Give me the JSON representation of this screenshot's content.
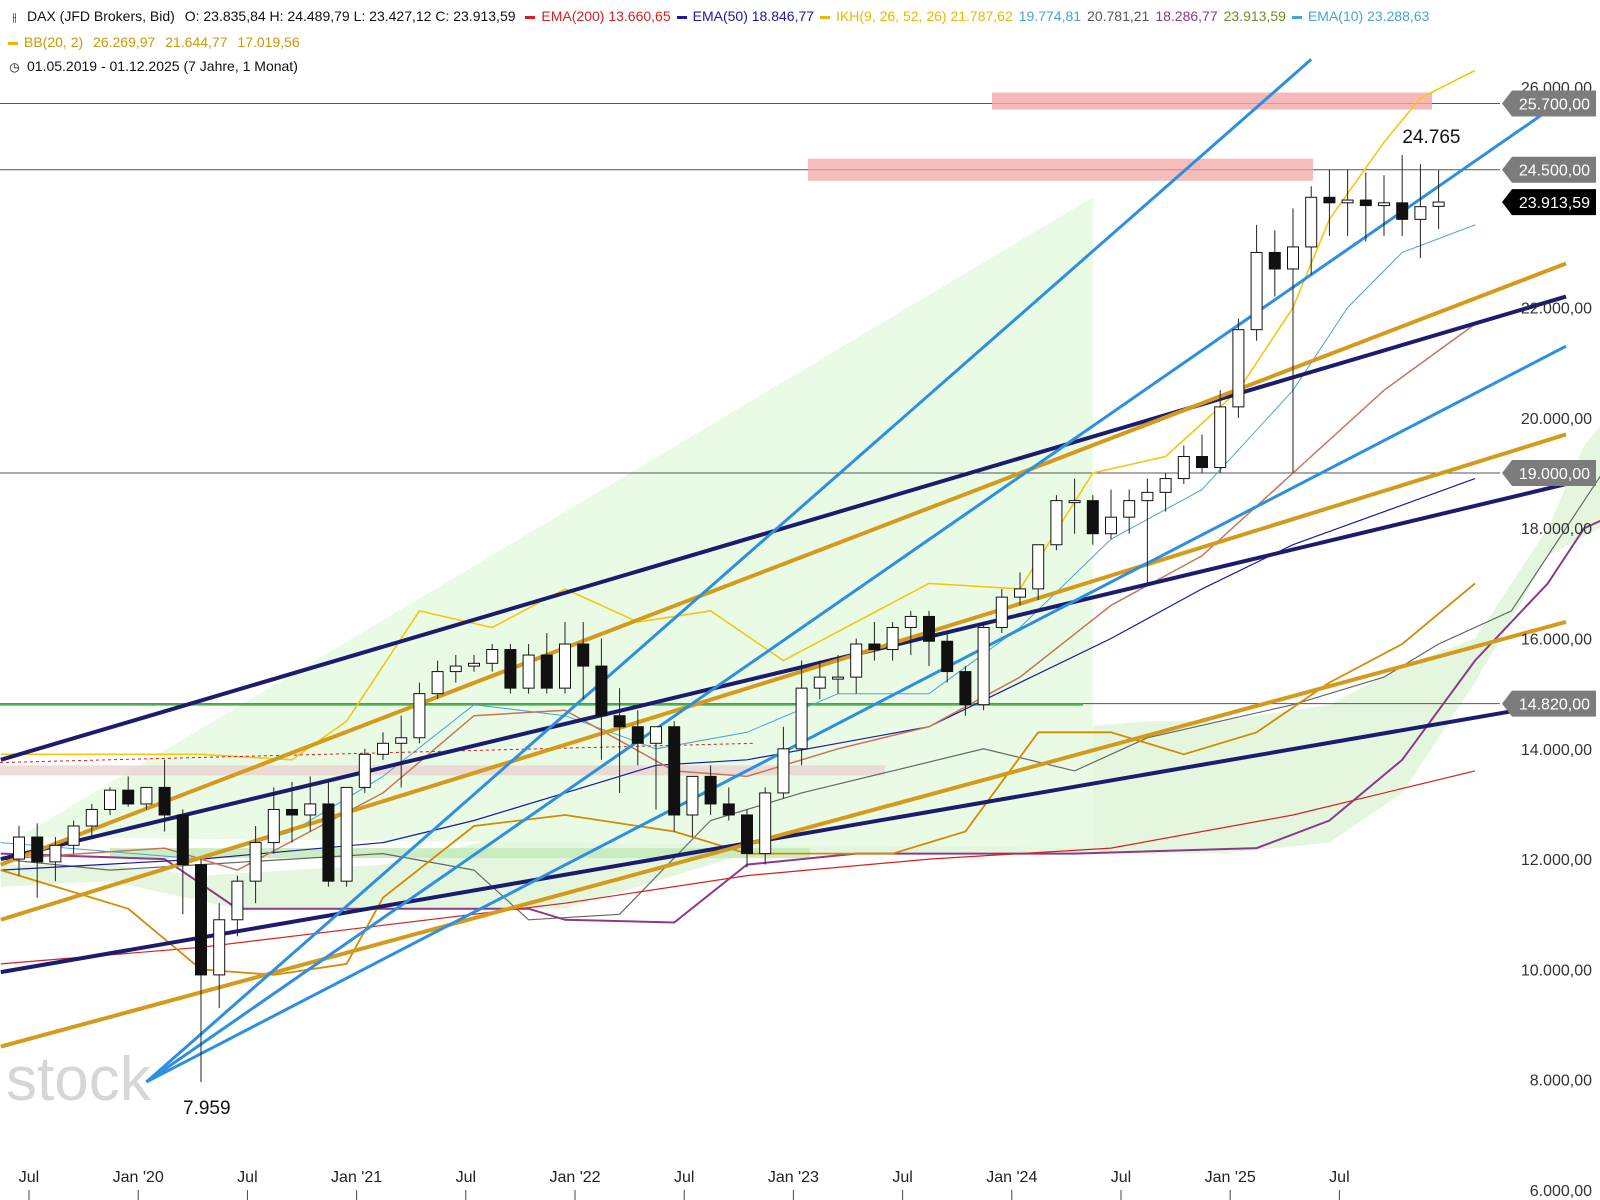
{
  "header": {
    "instrument": "DAX (JFD Brokers, Bid)",
    "ohlc": "O: 23.835,84  H: 24.489,79  L: 23.427,12  C: 23.913,59",
    "indicators": [
      {
        "label": "EMA(200)",
        "values": "13.660,65",
        "color": "#d62020"
      },
      {
        "label": "EMA(50)",
        "values": "18.846,77",
        "color": "#1a1aa0"
      },
      {
        "label": "IKH(9, 26, 52, 26)",
        "values": "21.787,62",
        "color": "#e6b800"
      },
      {
        "label": "",
        "values": "19.774,81",
        "color": "#4aa3d8"
      },
      {
        "label": "",
        "values": "20.781,21",
        "color": "#555555"
      },
      {
        "label": "",
        "values": "18.286,77",
        "color": "#8a3a8a"
      },
      {
        "label": "",
        "values": "23.913,59",
        "color": "#6b8e23"
      },
      {
        "label": "EMA(10)",
        "values": "23.288,63",
        "color": "#4aa3d8"
      }
    ],
    "bb": {
      "label": "BB(20, 2)",
      "upper": "26.269,97",
      "middle": "21.644,77",
      "lower": "17.019,56",
      "color": "#e6b800"
    },
    "range": "01.05.2019 - 01.12.2025  (7 Jahre, 1 Monat)"
  },
  "chart_data": {
    "type": "candlestick",
    "y_ticks": [
      "6.000,00",
      "8.000,00",
      "10.000,00",
      "12.000,00",
      "14.000,00",
      "16.000,00",
      "18.000,00",
      "20.000,00",
      "22.000,00",
      "24.000,00",
      "26.000,00"
    ],
    "x_ticks": [
      "Jul",
      "Jan '20",
      "Jul",
      "Jan '21",
      "Jul",
      "Jan '22",
      "Jul",
      "Jan '23",
      "Jul",
      "Jan '24",
      "Jul",
      "Jan '25",
      "Jul"
    ],
    "price_labels": [
      {
        "value": 25700,
        "text": "25.700,00",
        "style": "grey"
      },
      {
        "value": 24500,
        "text": "24.500,00",
        "style": "grey"
      },
      {
        "value": 23913.59,
        "text": "23.913,59",
        "style": "black"
      },
      {
        "value": 19000,
        "text": "19.000,00",
        "style": "grey"
      },
      {
        "value": 14820,
        "text": "14.820,00",
        "style": "grey"
      }
    ],
    "annotations": [
      {
        "text": "24.765",
        "x_month": 77,
        "value": 24765
      },
      {
        "text": "7.959",
        "x_month": 10,
        "value": 7959
      }
    ],
    "candles": [
      [
        12000,
        12600,
        11700,
        12400
      ],
      [
        12400,
        12650,
        11300,
        11950
      ],
      [
        11950,
        12400,
        11600,
        12250
      ],
      [
        12250,
        12700,
        12100,
        12600
      ],
      [
        12600,
        13000,
        12400,
        12900
      ],
      [
        12900,
        13300,
        12800,
        13250
      ],
      [
        13250,
        13500,
        12950,
        13000
      ],
      [
        13000,
        13300,
        12900,
        13300
      ],
      [
        13300,
        13800,
        12500,
        12800
      ],
      [
        12800,
        12900,
        11000,
        11900
      ],
      [
        11900,
        12000,
        7959,
        9900
      ],
      [
        9900,
        11200,
        9300,
        10900
      ],
      [
        10900,
        11700,
        10600,
        11600
      ],
      [
        11600,
        12600,
        11200,
        12300
      ],
      [
        12300,
        13300,
        12100,
        12900
      ],
      [
        12900,
        13400,
        12300,
        12800
      ],
      [
        12800,
        13500,
        12500,
        13000
      ],
      [
        13000,
        13400,
        11500,
        11600
      ],
      [
        11600,
        13300,
        11500,
        13300
      ],
      [
        13300,
        14000,
        13200,
        13900
      ],
      [
        13900,
        14300,
        13800,
        14100
      ],
      [
        14100,
        14600,
        13300,
        14200
      ],
      [
        14200,
        15200,
        14100,
        15000
      ],
      [
        15000,
        15600,
        14900,
        15400
      ],
      [
        15400,
        15700,
        15200,
        15500
      ],
      [
        15500,
        15700,
        15400,
        15550
      ],
      [
        15550,
        15900,
        15400,
        15800
      ],
      [
        15800,
        15900,
        15000,
        15100
      ],
      [
        15100,
        15900,
        15000,
        15700
      ],
      [
        15700,
        16100,
        15000,
        15100
      ],
      [
        15100,
        16300,
        15000,
        15900
      ],
      [
        15900,
        16300,
        14900,
        15500
      ],
      [
        15500,
        16000,
        13800,
        14600
      ],
      [
        14600,
        15100,
        13200,
        14400
      ],
      [
        14400,
        14700,
        13700,
        14100
      ],
      [
        14100,
        14400,
        12900,
        14400
      ],
      [
        14400,
        14500,
        12500,
        12800
      ],
      [
        12800,
        13400,
        12400,
        13500
      ],
      [
        13500,
        13700,
        12800,
        13000
      ],
      [
        13000,
        13300,
        12700,
        12800
      ],
      [
        12800,
        12900,
        11850,
        12100
      ],
      [
        12100,
        13300,
        11900,
        13200
      ],
      [
        13200,
        14400,
        13100,
        14000
      ],
      [
        14000,
        15600,
        13700,
        15100
      ],
      [
        15100,
        15600,
        14900,
        15300
      ],
      [
        15300,
        15700,
        15000,
        15300
      ],
      [
        15300,
        16000,
        15000,
        15900
      ],
      [
        15900,
        16300,
        15600,
        15800
      ],
      [
        15800,
        16300,
        15600,
        16200
      ],
      [
        16200,
        16500,
        15700,
        16400
      ],
      [
        16400,
        16500,
        15500,
        15950
      ],
      [
        15950,
        16100,
        15200,
        15400
      ],
      [
        15400,
        15500,
        14600,
        14800
      ],
      [
        14800,
        16300,
        14700,
        16200
      ],
      [
        16200,
        16900,
        16100,
        16750
      ],
      [
        16750,
        17200,
        16600,
        16900
      ],
      [
        16900,
        17700,
        16700,
        17700
      ],
      [
        17700,
        18600,
        17600,
        18500
      ],
      [
        18500,
        18900,
        17900,
        18500
      ],
      [
        18500,
        18600,
        17700,
        17900
      ],
      [
        17900,
        18700,
        17800,
        18200
      ],
      [
        18200,
        18700,
        17900,
        18500
      ],
      [
        18500,
        18900,
        17000,
        18650
      ],
      [
        18650,
        19000,
        18300,
        18900
      ],
      [
        18900,
        19500,
        18800,
        19300
      ],
      [
        19300,
        19700,
        19000,
        19100
      ],
      [
        19100,
        20500,
        19000,
        20200
      ],
      [
        20200,
        21800,
        20000,
        21600
      ],
      [
        21600,
        23500,
        21400,
        23000
      ],
      [
        23000,
        23400,
        22200,
        22700
      ],
      [
        22700,
        23800,
        19000,
        23100
      ],
      [
        23100,
        24200,
        22600,
        24000
      ],
      [
        24000,
        24500,
        23300,
        23900
      ],
      [
        23900,
        24500,
        23300,
        23950
      ],
      [
        23950,
        24450,
        23200,
        23850
      ],
      [
        23850,
        24400,
        23300,
        23900
      ],
      [
        23900,
        24765,
        23300,
        23600
      ],
      [
        23600,
        24600,
        22900,
        23830
      ],
      [
        23835.84,
        24489.79,
        23427.12,
        23913.59
      ]
    ]
  }
}
